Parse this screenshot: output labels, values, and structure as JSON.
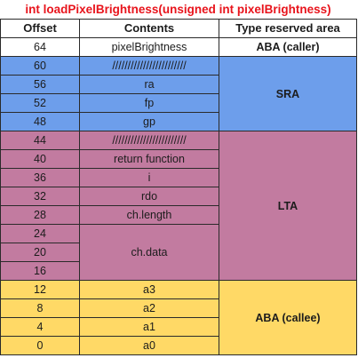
{
  "title": "int loadPixelBrightness(unsigned int pixelBrightness)",
  "headers": {
    "offset": "Offset",
    "contents": "Contents",
    "area": "Type reserved area"
  },
  "rows": [
    {
      "offset": "64",
      "contents": "pixelBrightness"
    },
    {
      "offset": "60",
      "contents": "////////////////////////"
    },
    {
      "offset": "56",
      "contents": "ra"
    },
    {
      "offset": "52",
      "contents": "fp"
    },
    {
      "offset": "48",
      "contents": "gp"
    },
    {
      "offset": "44",
      "contents": "////////////////////////"
    },
    {
      "offset": "40",
      "contents": "return function"
    },
    {
      "offset": "36",
      "contents": "i"
    },
    {
      "offset": "32",
      "contents": "rdo"
    },
    {
      "offset": "28",
      "contents": "ch.length"
    },
    {
      "offset": "24",
      "contents": ""
    },
    {
      "offset": "20",
      "contents": "ch.data"
    },
    {
      "offset": "16",
      "contents": ""
    },
    {
      "offset": "12",
      "contents": "a3"
    },
    {
      "offset": "8",
      "contents": "a2"
    },
    {
      "offset": "4",
      "contents": "a1"
    },
    {
      "offset": "0",
      "contents": "a0"
    }
  ],
  "areas": {
    "caller": "ABA (caller)",
    "sra": "SRA",
    "lta": "LTA",
    "callee": "ABA (callee)"
  },
  "colors": {
    "title": "#e8141c",
    "sra": "#6d9eeb",
    "lta": "#c27ba0",
    "aba_callee": "#ffd966"
  }
}
